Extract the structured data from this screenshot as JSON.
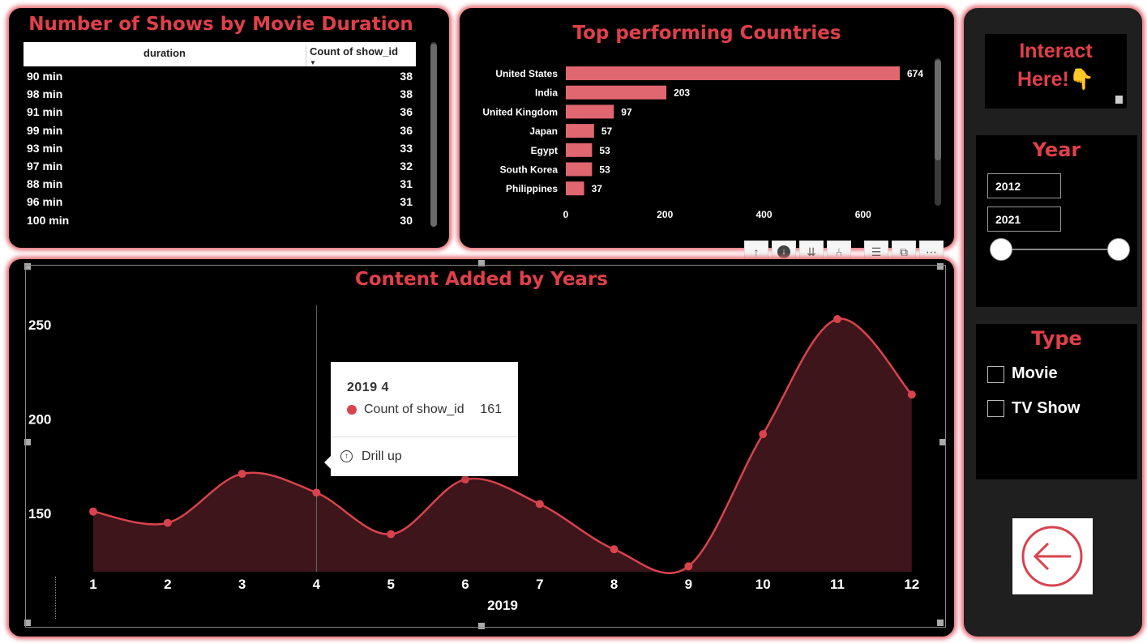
{
  "table": {
    "title": "Number of Shows by Movie Duration",
    "col1": "duration",
    "col2": "Count of show_id",
    "rows": [
      {
        "d": "90 min",
        "n": "38"
      },
      {
        "d": "98 min",
        "n": "38"
      },
      {
        "d": "91 min",
        "n": "36"
      },
      {
        "d": "99 min",
        "n": "36"
      },
      {
        "d": "93 min",
        "n": "33"
      },
      {
        "d": "97 min",
        "n": "32"
      },
      {
        "d": "88 min",
        "n": "31"
      },
      {
        "d": "96 min",
        "n": "31"
      },
      {
        "d": "100 min",
        "n": "30"
      }
    ]
  },
  "tooltip": {
    "header": "2019 4",
    "series": "Count of show_id",
    "value": "161",
    "drill": "Drill up"
  },
  "side": {
    "interact": "Interact Here!👇",
    "year_title": "Year",
    "year_from": "2012",
    "year_to": "2021",
    "type_title": "Type",
    "type_options": [
      "Movie",
      "TV Show"
    ]
  },
  "colors": {
    "accent": "#e0404a",
    "bar": "#e06670",
    "line": "#d9434d",
    "area": "#3d151a"
  },
  "chart_data": [
    {
      "type": "bar",
      "orientation": "horizontal",
      "title": "Top performing Countries",
      "categories": [
        "United States",
        "India",
        "United Kingdom",
        "Japan",
        "Egypt",
        "South Korea",
        "Philippines"
      ],
      "values": [
        674,
        203,
        97,
        57,
        53,
        53,
        37
      ],
      "xticks": [
        0,
        200,
        400,
        600
      ],
      "xlim": [
        0,
        700
      ],
      "grid": false
    },
    {
      "type": "area",
      "title": "Content Added by Years",
      "xlabel": "2019",
      "x": [
        1,
        2,
        3,
        4,
        5,
        6,
        7,
        8,
        9,
        10,
        11,
        12
      ],
      "series": [
        {
          "name": "Count of show_id",
          "values": [
            151,
            145,
            171,
            161,
            139,
            168,
            155,
            131,
            122,
            192,
            253,
            213
          ]
        }
      ],
      "yticks": [
        150,
        200,
        250
      ],
      "ylim": [
        120,
        260
      ],
      "grid": false
    }
  ]
}
